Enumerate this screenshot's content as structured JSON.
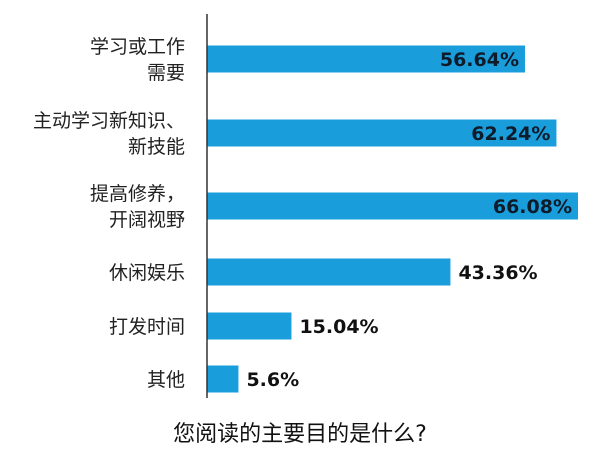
{
  "chart_data": {
    "type": "bar",
    "orientation": "horizontal",
    "title": "您阅读的主要目的是什么?",
    "categories": [
      [
        "学习或工作",
        "需要"
      ],
      [
        "主动学习新知识、",
        "新技能"
      ],
      [
        "提高修养，",
        "开阔视野"
      ],
      [
        "休闲娱乐"
      ],
      [
        "打发时间"
      ],
      [
        "其他"
      ]
    ],
    "values": [
      56.64,
      62.24,
      66.08,
      43.36,
      15.04,
      5.6
    ],
    "value_labels": [
      "56.64%",
      "62.24%",
      "66.08%",
      "43.36%",
      "15.04%",
      "5.6%"
    ],
    "xlim": [
      0,
      66.08
    ],
    "grid": false,
    "bar_color": "#1a9ddb",
    "axis_color": "#333333"
  }
}
